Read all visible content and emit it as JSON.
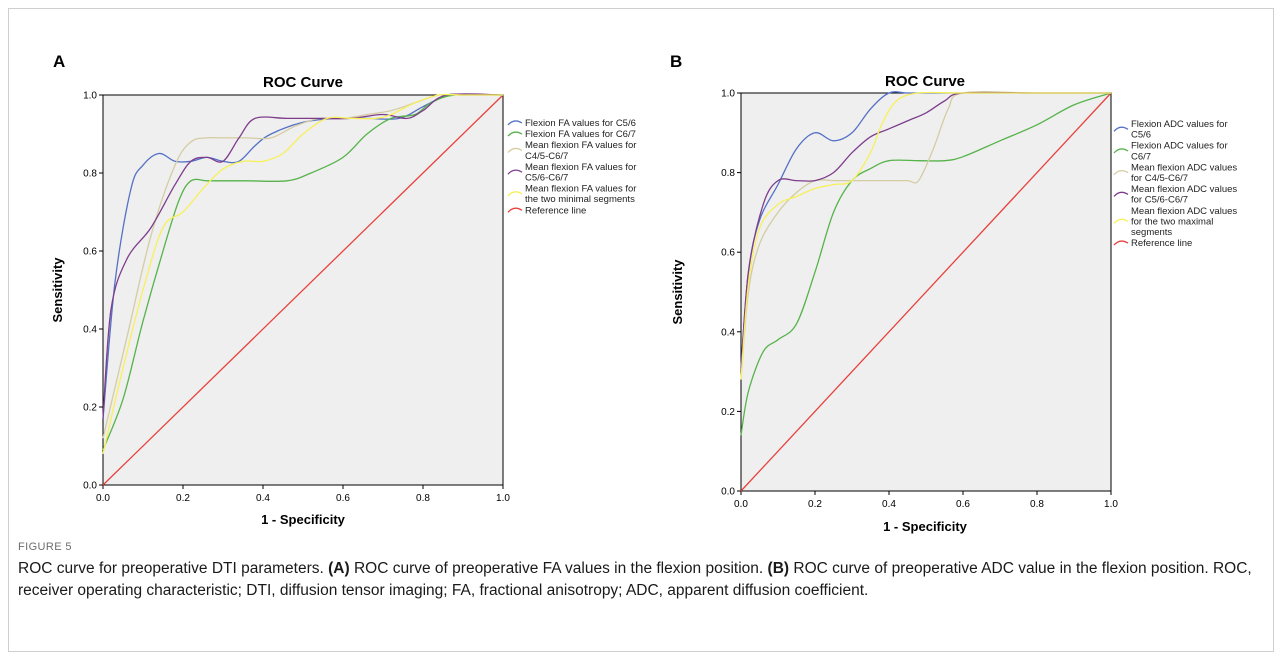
{
  "figure": {
    "label": "FIGURE 5",
    "caption_intro": "ROC curve for preoperative DTI parameters.",
    "caption_a_marker": "(A)",
    "caption_a_text": "ROC curve of preoperative FA values in the flexion position.",
    "caption_b_marker": "(B)",
    "caption_b_text": "ROC curve of preoperative ADC value in the flexion position. ROC, receiver operating characteristic; DTI, diffusion tensor imaging; FA, fractional anisotropy; ADC, apparent diffusion coefficient."
  },
  "colors": {
    "plot_background": "#efefef",
    "reference_line": "#e8413c",
    "series_blue": "#5470c6",
    "series_green": "#56b34a",
    "series_beige": "#d4cca2",
    "series_purple": "#7e3d8c",
    "series_yellow": "#f7f05a"
  },
  "chart_data": [
    {
      "panel": "A",
      "type": "line",
      "title": "ROC Curve",
      "xlabel": "1 - Specificity",
      "ylabel": "Sensitivity",
      "xlim": [
        0,
        1
      ],
      "ylim": [
        0,
        1
      ],
      "xticks": [
        "0.0",
        "0.2",
        "0.4",
        "0.6",
        "0.8",
        "1.0"
      ],
      "yticks": [
        "0.0",
        "0.2",
        "0.4",
        "0.6",
        "0.8",
        "1.0"
      ],
      "grid": false,
      "legend_position": "right",
      "series": [
        {
          "name": "Flexion FA values for C5/6",
          "color": "#5470c6",
          "x": [
            0,
            0.03,
            0.07,
            0.1,
            0.14,
            0.18,
            0.22,
            0.26,
            0.3,
            0.34,
            0.38,
            0.42,
            0.5,
            0.58,
            0.66,
            0.74,
            0.8,
            0.86,
            0.9,
            1.0
          ],
          "y": [
            0.17,
            0.52,
            0.76,
            0.82,
            0.85,
            0.83,
            0.83,
            0.84,
            0.83,
            0.83,
            0.87,
            0.9,
            0.93,
            0.94,
            0.94,
            0.94,
            0.97,
            1.0,
            1.0,
            1.0
          ]
        },
        {
          "name": "Flexion FA values for C6/7",
          "color": "#56b34a",
          "x": [
            0,
            0.05,
            0.1,
            0.15,
            0.19,
            0.22,
            0.26,
            0.3,
            0.36,
            0.46,
            0.52,
            0.6,
            0.66,
            0.72,
            0.78,
            0.82,
            0.88,
            1.0
          ],
          "y": [
            0.09,
            0.22,
            0.42,
            0.6,
            0.73,
            0.78,
            0.78,
            0.78,
            0.78,
            0.78,
            0.8,
            0.84,
            0.9,
            0.94,
            0.95,
            0.98,
            1.0,
            1.0
          ]
        },
        {
          "name": "Mean flexion FA values for C4/5-C6/7",
          "color": "#d4cca2",
          "x": [
            0,
            0.06,
            0.12,
            0.18,
            0.22,
            0.26,
            0.3,
            0.36,
            0.42,
            0.48,
            0.54,
            0.6,
            0.66,
            0.72,
            0.78,
            0.84,
            0.9,
            1.0
          ],
          "y": [
            0.12,
            0.38,
            0.64,
            0.82,
            0.88,
            0.89,
            0.89,
            0.89,
            0.89,
            0.92,
            0.94,
            0.94,
            0.95,
            0.96,
            0.98,
            1.0,
            1.0,
            1.0
          ]
        },
        {
          "name": "Mean flexion FA values for C5/6-C6/7",
          "color": "#7e3d8c",
          "x": [
            0,
            0.02,
            0.06,
            0.12,
            0.18,
            0.22,
            0.26,
            0.3,
            0.34,
            0.38,
            0.46,
            0.54,
            0.62,
            0.7,
            0.76,
            0.8,
            0.86,
            1.0
          ],
          "y": [
            0.17,
            0.45,
            0.58,
            0.66,
            0.77,
            0.83,
            0.84,
            0.83,
            0.89,
            0.94,
            0.94,
            0.94,
            0.94,
            0.95,
            0.94,
            0.96,
            1.0,
            1.0
          ]
        },
        {
          "name": "Mean flexion FA values for the two minimal segments",
          "color": "#f7f05a",
          "x": [
            0,
            0.05,
            0.1,
            0.15,
            0.2,
            0.25,
            0.3,
            0.35,
            0.4,
            0.45,
            0.5,
            0.56,
            0.62,
            0.68,
            0.72,
            0.78,
            0.84,
            0.9,
            1.0
          ],
          "y": [
            0.08,
            0.3,
            0.5,
            0.66,
            0.7,
            0.76,
            0.81,
            0.83,
            0.83,
            0.85,
            0.9,
            0.94,
            0.94,
            0.94,
            0.95,
            0.98,
            1.0,
            1.0,
            1.0
          ]
        },
        {
          "name": "Reference line",
          "color": "#e8413c",
          "x": [
            0,
            1
          ],
          "y": [
            0,
            1
          ]
        }
      ]
    },
    {
      "panel": "B",
      "type": "line",
      "title": "ROC Curve",
      "xlabel": "1 - Specificity",
      "ylabel": "Sensitivity",
      "xlim": [
        0,
        1
      ],
      "ylim": [
        0,
        1
      ],
      "xticks": [
        "0.0",
        "0.2",
        "0.4",
        "0.6",
        "0.8",
        "1.0"
      ],
      "yticks": [
        "0.0",
        "0.2",
        "0.4",
        "0.6",
        "0.8",
        "1.0"
      ],
      "grid": false,
      "legend_position": "right",
      "series": [
        {
          "name": "Flexion ADC values for C5/6",
          "color": "#5470c6",
          "x": [
            0,
            0.02,
            0.05,
            0.1,
            0.15,
            0.2,
            0.25,
            0.3,
            0.35,
            0.4,
            0.45,
            0.5,
            0.6,
            0.8,
            1.0
          ],
          "y": [
            0.31,
            0.55,
            0.68,
            0.77,
            0.86,
            0.9,
            0.88,
            0.9,
            0.96,
            1.0,
            1.0,
            1.0,
            1.0,
            1.0,
            1.0
          ]
        },
        {
          "name": "Flexion ADC values for C6/7",
          "color": "#56b34a",
          "x": [
            0,
            0.02,
            0.06,
            0.1,
            0.15,
            0.2,
            0.25,
            0.3,
            0.35,
            0.4,
            0.48,
            0.55,
            0.6,
            0.7,
            0.8,
            0.9,
            1.0
          ],
          "y": [
            0.14,
            0.25,
            0.35,
            0.38,
            0.42,
            0.55,
            0.7,
            0.78,
            0.81,
            0.83,
            0.83,
            0.83,
            0.84,
            0.88,
            0.92,
            0.97,
            1.0
          ]
        },
        {
          "name": "Mean flexion ADC values for C4/5-C6/7",
          "color": "#d4cca2",
          "x": [
            0,
            0.02,
            0.05,
            0.1,
            0.15,
            0.2,
            0.25,
            0.3,
            0.35,
            0.4,
            0.45,
            0.48,
            0.52,
            0.56,
            0.6,
            0.8,
            1.0
          ],
          "y": [
            0.28,
            0.5,
            0.62,
            0.7,
            0.75,
            0.78,
            0.78,
            0.78,
            0.78,
            0.78,
            0.78,
            0.78,
            0.86,
            0.96,
            1.0,
            1.0,
            1.0
          ]
        },
        {
          "name": "Mean flexion ADC values for C5/6-C6/7",
          "color": "#7e3d8c",
          "x": [
            0,
            0.02,
            0.06,
            0.1,
            0.15,
            0.2,
            0.25,
            0.3,
            0.35,
            0.4,
            0.45,
            0.5,
            0.55,
            0.6,
            0.8,
            1.0
          ],
          "y": [
            0.3,
            0.55,
            0.72,
            0.78,
            0.78,
            0.78,
            0.8,
            0.85,
            0.89,
            0.91,
            0.93,
            0.95,
            0.98,
            1.0,
            1.0,
            1.0
          ]
        },
        {
          "name": "Mean flexion ADC values for the two maximal segments",
          "color": "#f7f05a",
          "x": [
            0,
            0.02,
            0.05,
            0.1,
            0.15,
            0.2,
            0.25,
            0.3,
            0.35,
            0.38,
            0.42,
            0.48,
            0.6,
            0.8,
            1.0
          ],
          "y": [
            0.28,
            0.52,
            0.66,
            0.72,
            0.74,
            0.76,
            0.77,
            0.78,
            0.85,
            0.92,
            0.98,
            1.0,
            1.0,
            1.0,
            1.0
          ]
        },
        {
          "name": "Reference line",
          "color": "#e8413c",
          "x": [
            0,
            1
          ],
          "y": [
            0,
            1
          ]
        }
      ]
    }
  ]
}
